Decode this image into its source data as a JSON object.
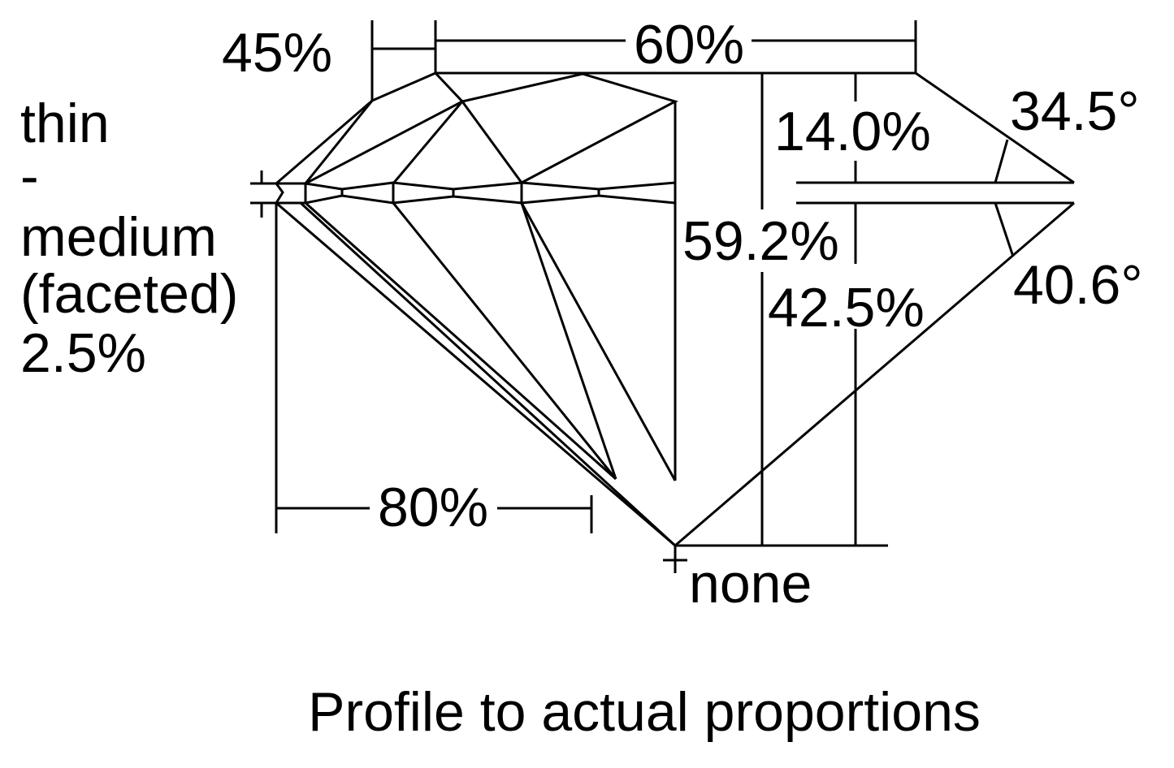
{
  "labels": {
    "crown_height_ratio": "45%",
    "table": "60%",
    "girdle_thin": "thin",
    "girdle_dash": "-",
    "girdle_medium": "medium",
    "girdle_faceted": "(faceted)",
    "girdle_pct": "2.5%",
    "crown_height": "14.0%",
    "total_depth": "59.2%",
    "pavilion_depth": "42.5%",
    "crown_angle": "34.5°",
    "pavilion_angle": "40.6°",
    "lower_half": "80%",
    "culet": "none"
  },
  "caption": "Profile to actual proportions",
  "colors": {
    "line": "#000000",
    "background": "#ffffff"
  }
}
